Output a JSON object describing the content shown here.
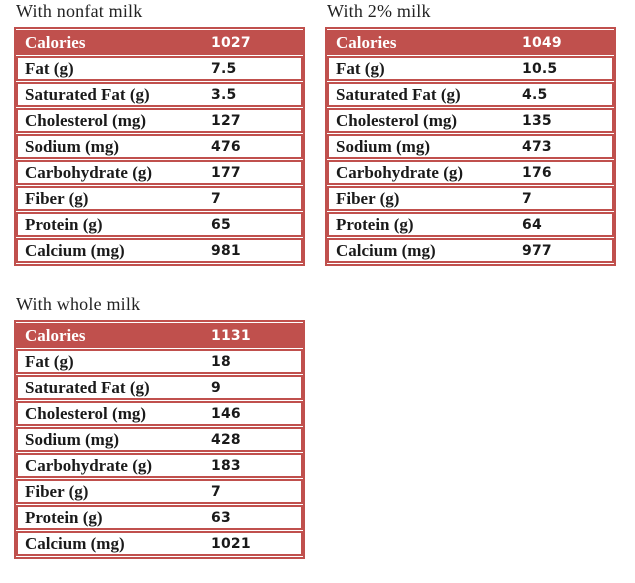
{
  "colors": {
    "accent_red": "#C0504D",
    "row_background": "#ffffff",
    "header_text": "#ffffff",
    "body_text": "#1a1a1a",
    "title_text": "#232323"
  },
  "chart_data": [
    {
      "type": "table",
      "title": "With nonfat milk",
      "header": {
        "label": "Calories",
        "value": "1027"
      },
      "rows": [
        {
          "label": "Fat (g)",
          "value": "7.5"
        },
        {
          "label": "Saturated Fat (g)",
          "value": "3.5"
        },
        {
          "label": "Cholesterol (mg)",
          "value": "127"
        },
        {
          "label": "Sodium (mg)",
          "value": "476"
        },
        {
          "label": "Carbohydrate (g)",
          "value": "177"
        },
        {
          "label": "Fiber (g)",
          "value": "7"
        },
        {
          "label": "Protein (g)",
          "value": "65"
        },
        {
          "label": "Calcium (mg)",
          "value": "981"
        }
      ]
    },
    {
      "type": "table",
      "title": "With 2% milk",
      "header": {
        "label": "Calories",
        "value": "1049"
      },
      "rows": [
        {
          "label": "Fat (g)",
          "value": "10.5"
        },
        {
          "label": "Saturated Fat (g)",
          "value": "4.5"
        },
        {
          "label": "Cholesterol (mg)",
          "value": "135"
        },
        {
          "label": "Sodium (mg)",
          "value": "473"
        },
        {
          "label": "Carbohydrate (g)",
          "value": "176"
        },
        {
          "label": "Fiber (g)",
          "value": "7"
        },
        {
          "label": "Protein (g)",
          "value": "64"
        },
        {
          "label": "Calcium (mg)",
          "value": "977"
        }
      ]
    },
    {
      "type": "table",
      "title": "With whole milk",
      "header": {
        "label": "Calories",
        "value": "1131"
      },
      "rows": [
        {
          "label": "Fat (g)",
          "value": "18"
        },
        {
          "label": "Saturated Fat (g)",
          "value": "9"
        },
        {
          "label": "Cholesterol (mg)",
          "value": "146"
        },
        {
          "label": "Sodium (mg)",
          "value": "428"
        },
        {
          "label": "Carbohydrate (g)",
          "value": "183"
        },
        {
          "label": "Fiber (g)",
          "value": "7"
        },
        {
          "label": "Protein (g)",
          "value": "63"
        },
        {
          "label": "Calcium (mg)",
          "value": "1021"
        }
      ]
    }
  ]
}
